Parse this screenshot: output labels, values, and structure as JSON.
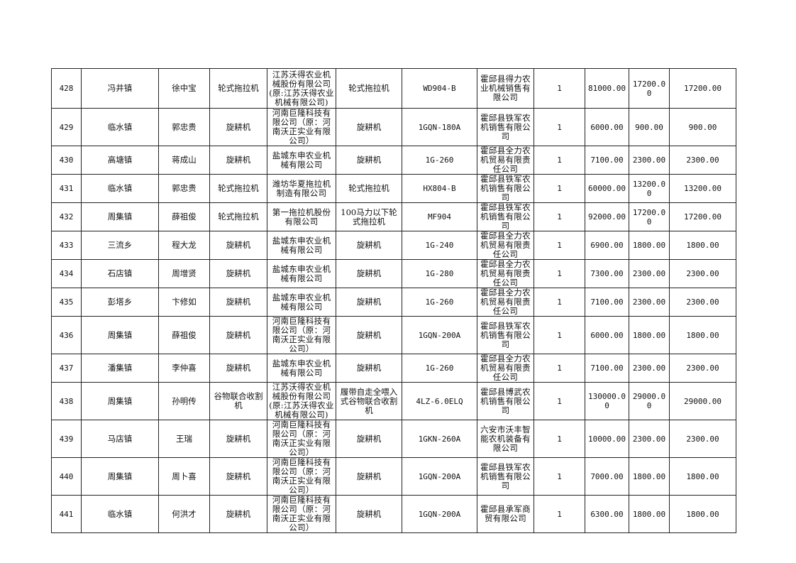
{
  "rows": [
    {
      "no": "428",
      "town": "冯井镇",
      "buyer": "徐中宝",
      "category": "轮式拖拉机",
      "maker": "江苏沃得农业机械股份有限公司(原:江苏沃得农业机械有限公司)",
      "product": "轮式拖拉机",
      "model": "WD904-B",
      "dealer": "霍邱县得力农业机械销售有限公司",
      "qty": "1",
      "price": "81000.00",
      "subsidy": "17200.00",
      "total": "17200.00"
    },
    {
      "no": "429",
      "town": "临水镇",
      "buyer": "郭忠贵",
      "category": "旋耕机",
      "maker": "河南巨隆科技有限公司（原：河南沃正实业有限公司）",
      "product": "旋耕机",
      "model": "1GQN-180A",
      "dealer": "霍邱县铁军农机销售有限公司",
      "qty": "1",
      "price": "6000.00",
      "subsidy": "900.00",
      "total": "900.00"
    },
    {
      "no": "430",
      "town": "高塘镇",
      "buyer": "蒋成山",
      "category": "旋耕机",
      "maker": "盐城东申农业机械有限公司",
      "product": "旋耕机",
      "model": "1G-260",
      "dealer": "霍邱县全力农机贸易有限责任公司",
      "qty": "1",
      "price": "7100.00",
      "subsidy": "2300.00",
      "total": "2300.00"
    },
    {
      "no": "431",
      "town": "临水镇",
      "buyer": "郭忠贵",
      "category": "轮式拖拉机",
      "maker": "潍坊华夏拖拉机制造有限公司",
      "product": "轮式拖拉机",
      "model": "HX804-B",
      "dealer": "霍邱县铁军农机销售有限公司",
      "qty": "1",
      "price": "60000.00",
      "subsidy": "13200.00",
      "total": "13200.00"
    },
    {
      "no": "432",
      "town": "周集镇",
      "buyer": "薛祖俊",
      "category": "轮式拖拉机",
      "maker": "第一拖拉机股份有限公司",
      "product": "100马力以下轮式拖拉机",
      "model": "MF904",
      "dealer": "霍邱县铁军农机销售有限公司",
      "qty": "1",
      "price": "92000.00",
      "subsidy": "17200.00",
      "total": "17200.00"
    },
    {
      "no": "433",
      "town": "三流乡",
      "buyer": "程大龙",
      "category": "旋耕机",
      "maker": "盐城东申农业机械有限公司",
      "product": "旋耕机",
      "model": "1G-240",
      "dealer": "霍邱县全力农机贸易有限责任公司",
      "qty": "1",
      "price": "6900.00",
      "subsidy": "1800.00",
      "total": "1800.00"
    },
    {
      "no": "434",
      "town": "石店镇",
      "buyer": "周增贤",
      "category": "旋耕机",
      "maker": "盐城东申农业机械有限公司",
      "product": "旋耕机",
      "model": "1G-280",
      "dealer": "霍邱县全力农机贸易有限责任公司",
      "qty": "1",
      "price": "7300.00",
      "subsidy": "2300.00",
      "total": "2300.00"
    },
    {
      "no": "435",
      "town": "彭塔乡",
      "buyer": "卞修如",
      "category": "旋耕机",
      "maker": "盐城东申农业机械有限公司",
      "product": "旋耕机",
      "model": "1G-260",
      "dealer": "霍邱县全力农机贸易有限责任公司",
      "qty": "1",
      "price": "7100.00",
      "subsidy": "2300.00",
      "total": "2300.00"
    },
    {
      "no": "436",
      "town": "周集镇",
      "buyer": "薛祖俊",
      "category": "旋耕机",
      "maker": "河南巨隆科技有限公司（原：河南沃正实业有限公司）",
      "product": "旋耕机",
      "model": "1GQN-200A",
      "dealer": "霍邱县铁军农机销售有限公司",
      "qty": "1",
      "price": "6000.00",
      "subsidy": "1800.00",
      "total": "1800.00"
    },
    {
      "no": "437",
      "town": "潘集镇",
      "buyer": "李仲喜",
      "category": "旋耕机",
      "maker": "盐城东申农业机械有限公司",
      "product": "旋耕机",
      "model": "1G-260",
      "dealer": "霍邱县全力农机贸易有限责任公司",
      "qty": "1",
      "price": "7100.00",
      "subsidy": "2300.00",
      "total": "2300.00"
    },
    {
      "no": "438",
      "town": "周集镇",
      "buyer": "孙明传",
      "category": "谷物联合收割机",
      "maker": "江苏沃得农业机械股份有限公司(原:江苏沃得农业机械有限公司)",
      "product": "履带自走全喂入式谷物联合收割机",
      "model": "4LZ-6.0ELQ",
      "dealer": "霍邱县博武农机销售有限公司",
      "qty": "1",
      "price": "130000.00",
      "subsidy": "29000.00",
      "total": "29000.00"
    },
    {
      "no": "439",
      "town": "马店镇",
      "buyer": "王瑞",
      "category": "旋耕机",
      "maker": "河南巨隆科技有限公司（原：河南沃正实业有限公司）",
      "product": "旋耕机",
      "model": "1GKN-260A",
      "dealer": "六安市沃丰智能农机装备有限公司",
      "qty": "1",
      "price": "10000.00",
      "subsidy": "2300.00",
      "total": "2300.00"
    },
    {
      "no": "440",
      "town": "周集镇",
      "buyer": "周卜喜",
      "category": "旋耕机",
      "maker": "河南巨隆科技有限公司（原：河南沃正实业有限公司）",
      "product": "旋耕机",
      "model": "1GQN-200A",
      "dealer": "霍邱县铁军农机销售有限公司",
      "qty": "1",
      "price": "7000.00",
      "subsidy": "1800.00",
      "total": "1800.00"
    },
    {
      "no": "441",
      "town": "临水镇",
      "buyer": "何洪才",
      "category": "旋耕机",
      "maker": "河南巨隆科技有限公司（原：河南沃正实业有限公司）",
      "product": "旋耕机",
      "model": "1GQN-200A",
      "dealer": "霍邱县承军商贸有限公司",
      "qty": "1",
      "price": "6300.00",
      "subsidy": "1800.00",
      "total": "1800.00"
    }
  ]
}
